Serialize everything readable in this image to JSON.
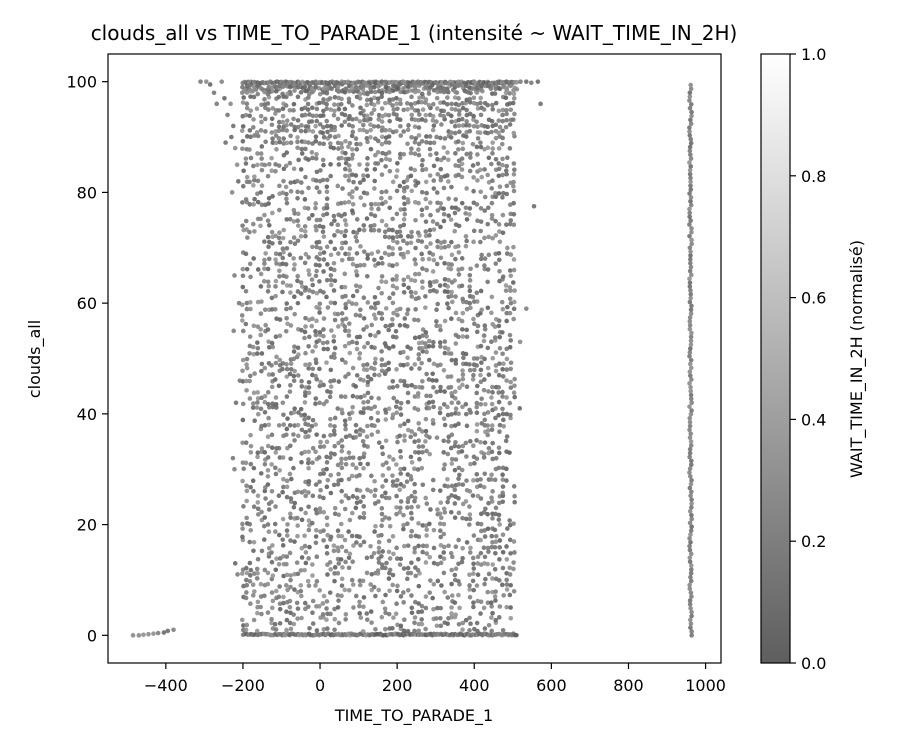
{
  "chart_data": {
    "type": "scatter",
    "title": "clouds_all vs TIME_TO_PARADE_1 (intensité ~ WAIT_TIME_IN_2H)",
    "xlabel": "TIME_TO_PARADE_1",
    "ylabel": "clouds_all",
    "xlim": [
      -550,
      1040
    ],
    "ylim": [
      -5,
      105
    ],
    "xticks": [
      -400,
      -200,
      0,
      200,
      400,
      600,
      800,
      1000
    ],
    "xtick_labels": [
      "−400",
      "−200",
      "0",
      "200",
      "400",
      "600",
      "800",
      "1000"
    ],
    "yticks": [
      0,
      20,
      40,
      60,
      80,
      100
    ],
    "ytick_labels": [
      "0",
      "20",
      "40",
      "60",
      "80",
      "100"
    ],
    "grid": false,
    "colorbar": {
      "label": "WAIT_TIME_IN_2H (normalisé)",
      "range": [
        0,
        1
      ],
      "ticks": [
        0.0,
        0.2,
        0.4,
        0.6,
        0.8,
        1.0
      ],
      "tick_labels": [
        "0.0",
        "0.2",
        "0.4",
        "0.6",
        "0.8",
        "1.0"
      ],
      "color_low": "#5e5e5e",
      "color_high": "#ffffff"
    },
    "clusters": [
      {
        "name": "main-block",
        "x_range": [
          -200,
          512
        ],
        "y_range": [
          0,
          100
        ],
        "color_value_range": [
          0.0,
          0.35
        ]
      },
      {
        "name": "right-column",
        "x_range": [
          958,
          964
        ],
        "y_range": [
          0,
          100
        ],
        "color_value_range": [
          0.05,
          0.3
        ]
      },
      {
        "name": "upper-left-scatter",
        "points": [
          [
            -310,
            100
          ],
          [
            -295,
            100
          ],
          [
            -285,
            99.5
          ],
          [
            -275,
            98
          ],
          [
            -268,
            96
          ],
          [
            -255,
            100
          ],
          [
            -248,
            97
          ],
          [
            -240,
            94
          ],
          [
            -232,
            96
          ],
          [
            -225,
            92
          ],
          [
            -230,
            90
          ],
          [
            -220,
            88
          ],
          [
            -215,
            85
          ],
          [
            -212,
            82
          ],
          [
            -245,
            89
          ],
          [
            -228,
            80
          ],
          [
            -222,
            65
          ],
          [
            -224,
            55
          ],
          [
            -218,
            42
          ],
          [
            -226,
            32
          ],
          [
            -222,
            30
          ],
          [
            -220,
            13
          ],
          [
            -214,
            11
          ],
          [
            -208,
            46
          ],
          [
            -210,
            60
          ]
        ]
      },
      {
        "name": "lower-left-tail",
        "points": [
          [
            -485,
            0
          ],
          [
            -470,
            0
          ],
          [
            -458,
            0.1
          ],
          [
            -445,
            0.2
          ],
          [
            -432,
            0.3
          ],
          [
            -420,
            0.4
          ],
          [
            -405,
            0.5
          ],
          [
            -395,
            0.8
          ],
          [
            -380,
            1
          ]
        ]
      },
      {
        "name": "right-outliers",
        "points": [
          [
            520,
            100
          ],
          [
            535,
            100
          ],
          [
            548,
            99.8
          ],
          [
            565,
            100
          ],
          [
            572,
            96
          ],
          [
            555,
            77.5
          ],
          [
            535,
            59
          ],
          [
            518,
            41
          ],
          [
            519,
            53
          ]
        ]
      }
    ]
  }
}
